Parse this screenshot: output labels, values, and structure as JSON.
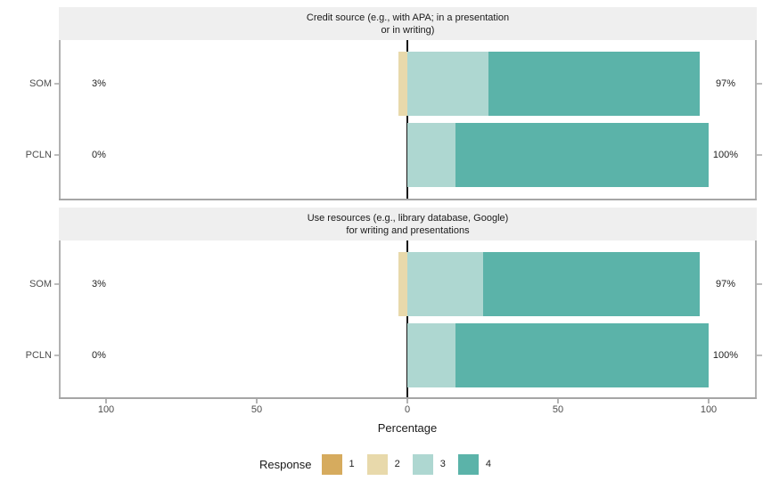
{
  "chart_data": {
    "type": "bar",
    "subtype": "diverging-stacked-likert",
    "orientation": "horizontal",
    "title": "",
    "xlabel": "Percentage",
    "x_axis_range": [
      -115,
      115
    ],
    "x_ticks": [
      {
        "value": -100,
        "label": "100"
      },
      {
        "value": -50,
        "label": "50"
      },
      {
        "value": 0,
        "label": "0"
      },
      {
        "value": 50,
        "label": "50"
      },
      {
        "value": 100,
        "label": "100"
      }
    ],
    "grid": false,
    "legend": {
      "title": "Response",
      "position": "bottom",
      "items": [
        {
          "label": "1",
          "color": "#d6ab5e"
        },
        {
          "label": "2",
          "color": "#e8d9ab"
        },
        {
          "label": "3",
          "color": "#aed7d1"
        },
        {
          "label": "4",
          "color": "#5bb3a9"
        }
      ]
    },
    "negative_levels": [
      "2",
      "1"
    ],
    "positive_levels": [
      "3",
      "4"
    ],
    "facets": [
      {
        "title": "Credit source (e.g., with APA; in a presentation\nor in writing)",
        "rows": [
          {
            "category": "SOM",
            "values": {
              "1": 0,
              "2": 3,
              "3": 27,
              "4": 70
            },
            "left_label": "3%",
            "right_label": "97%"
          },
          {
            "category": "PCLN",
            "values": {
              "1": 0,
              "2": 0,
              "3": 16,
              "4": 84
            },
            "left_label": "0%",
            "right_label": "100%"
          }
        ]
      },
      {
        "title": "Use resources (e.g., library database, Google)\nfor writing and presentations",
        "rows": [
          {
            "category": "SOM",
            "values": {
              "1": 0,
              "2": 3,
              "3": 25,
              "4": 72
            },
            "left_label": "3%",
            "right_label": "97%"
          },
          {
            "category": "PCLN",
            "values": {
              "1": 0,
              "2": 0,
              "3": 16,
              "4": 84
            },
            "left_label": "0%",
            "right_label": "100%"
          }
        ]
      }
    ]
  }
}
